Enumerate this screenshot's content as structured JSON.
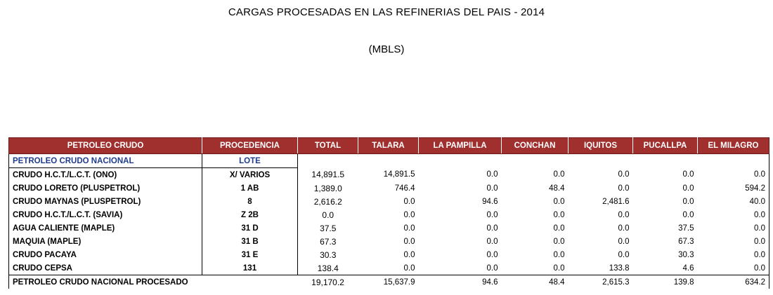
{
  "title": "CARGAS PROCESADAS EN LAS REFINERIAS DEL PAIS - 2014",
  "subtitle": "(MBLS)",
  "headers": [
    "PETROLEO CRUDO",
    "PROCEDENCIA",
    "TOTAL",
    "TALARA",
    "LA PAMPILLA",
    "CONCHAN",
    "IQUITOS",
    "PUCALLPA",
    "EL MILAGRO"
  ],
  "section": {
    "label": "PETROLEO CRUDO NACIONAL",
    "procedencia": "LOTE"
  },
  "rows": [
    {
      "name": "CRUDO H.C.T./L.C.T. (ONO)",
      "lote": "X/ VARIOS",
      "total": "14,891.5",
      "talara": "14,891.5",
      "la_pampilla": "0.0",
      "conchan": "0.0",
      "iquitos": "0.0",
      "pucallpa": "0.0",
      "el_milagro": "0.0"
    },
    {
      "name": "CRUDO LORETO (PLUSPETROL)",
      "lote": "1 AB",
      "total": "1,389.0",
      "talara": "746.4",
      "la_pampilla": "0.0",
      "conchan": "48.4",
      "iquitos": "0.0",
      "pucallpa": "0.0",
      "el_milagro": "594.2"
    },
    {
      "name": "CRUDO MAYNAS (PLUSPETROL)",
      "lote": "8",
      "total": "2,616.2",
      "talara": "0.0",
      "la_pampilla": "94.6",
      "conchan": "0.0",
      "iquitos": "2,481.6",
      "pucallpa": "0.0",
      "el_milagro": "40.0"
    },
    {
      "name": "CRUDO H.C.T./L.C.T.  (SAVIA)",
      "lote": "Z 2B",
      "total": "0.0",
      "talara": "0.0",
      "la_pampilla": "0.0",
      "conchan": "0.0",
      "iquitos": "0.0",
      "pucallpa": "0.0",
      "el_milagro": "0.0"
    },
    {
      "name": "AGUA CALIENTE (MAPLE)",
      "lote": "31 D",
      "total": "37.5",
      "talara": "0.0",
      "la_pampilla": "0.0",
      "conchan": "0.0",
      "iquitos": "0.0",
      "pucallpa": "37.5",
      "el_milagro": "0.0"
    },
    {
      "name": "MAQUIA (MAPLE)",
      "lote": "31 B",
      "total": "67.3",
      "talara": "0.0",
      "la_pampilla": "0.0",
      "conchan": "0.0",
      "iquitos": "0.0",
      "pucallpa": "67.3",
      "el_milagro": "0.0"
    },
    {
      "name": "CRUDO PACAYA",
      "lote": "31 E",
      "total": "30.3",
      "talara": "0.0",
      "la_pampilla": "0.0",
      "conchan": "0.0",
      "iquitos": "0.0",
      "pucallpa": "30.3",
      "el_milagro": "0.0"
    },
    {
      "name": "CRUDO CEPSA",
      "lote": "131",
      "total": "138.4",
      "talara": "0.0",
      "la_pampilla": "0.0",
      "conchan": "0.0",
      "iquitos": "133.8",
      "pucallpa": "4.6",
      "el_milagro": "0.0"
    }
  ],
  "total_row": {
    "name": "PETROLEO CRUDO NACIONAL PROCESADO",
    "lote": "",
    "total": "19,170.2",
    "talara": "15,637.9",
    "la_pampilla": "94.6",
    "conchan": "48.4",
    "iquitos": "2,615.3",
    "pucallpa": "139.8",
    "el_milagro": "634.2"
  },
  "colors": {
    "header_bg": "#a0302e",
    "header_text": "#ffffff",
    "section_text": "#1f3b8f"
  }
}
